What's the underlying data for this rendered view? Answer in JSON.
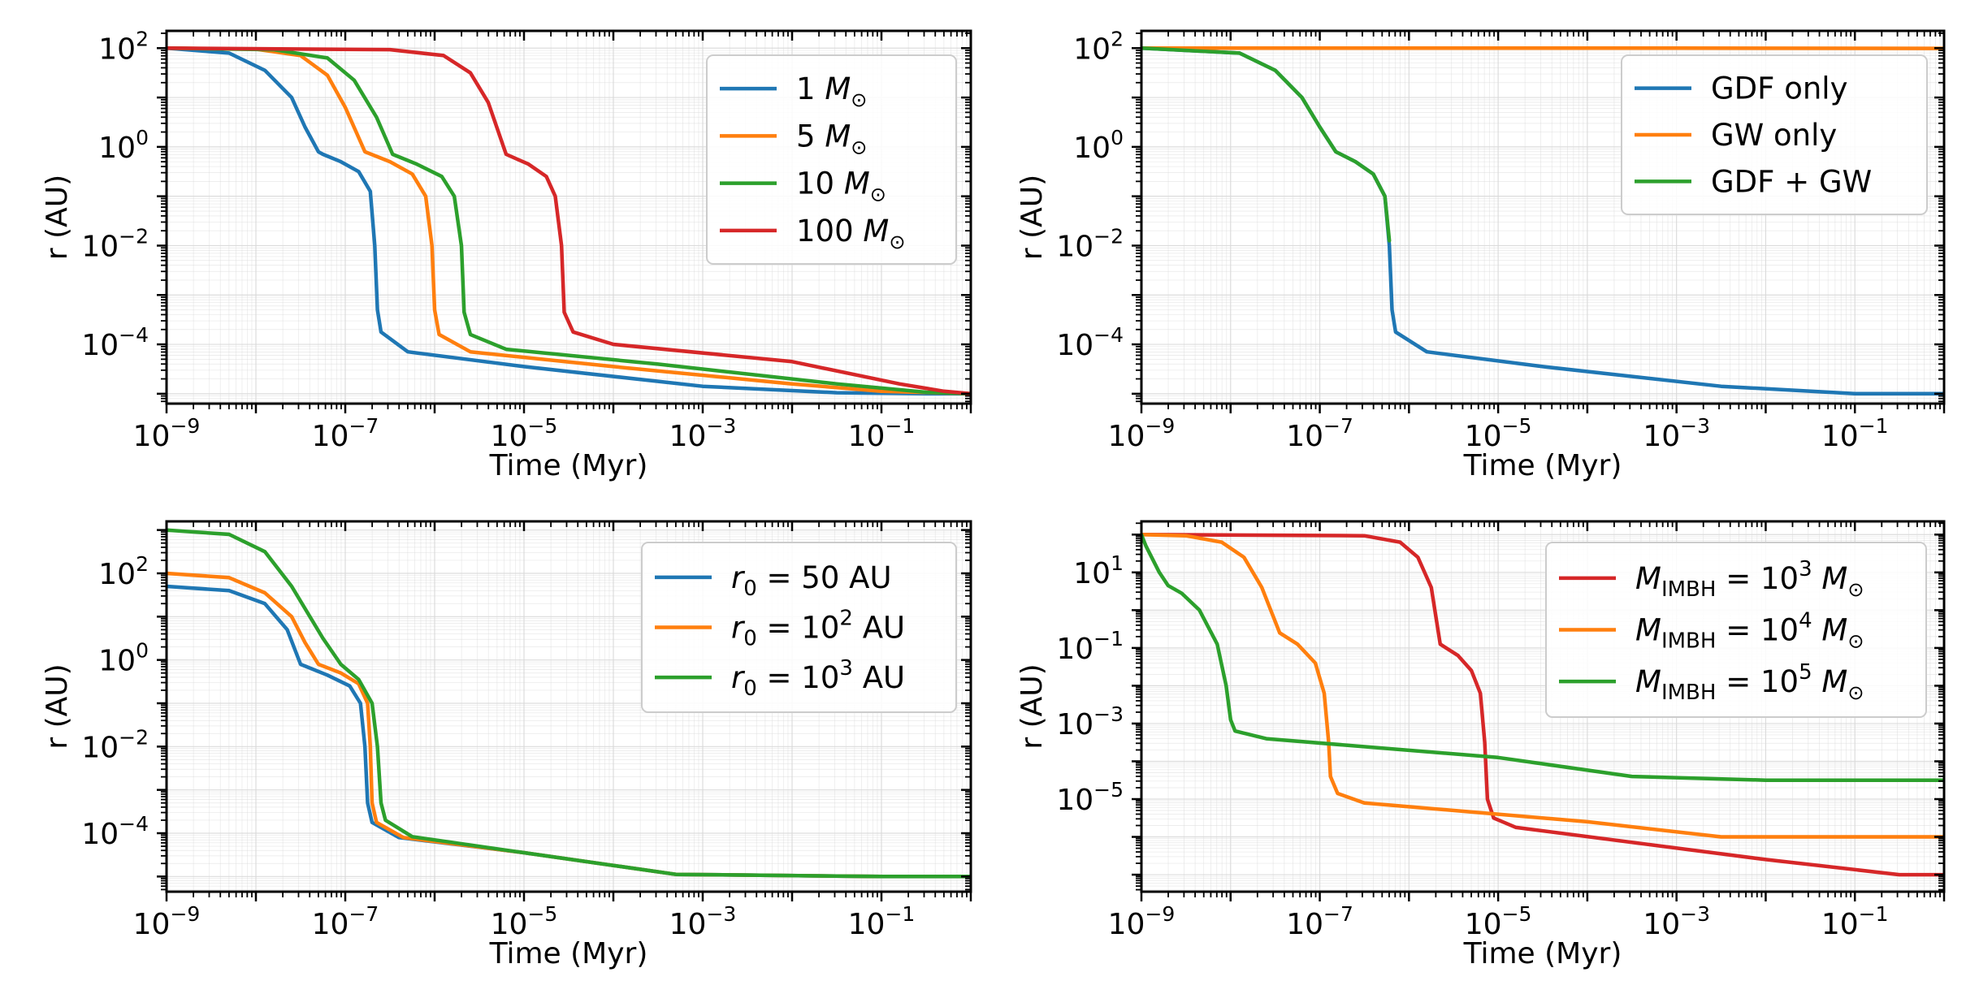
{
  "colors": {
    "blue": "#1f77b4",
    "orange": "#ff7f0e",
    "green": "#2ca02c",
    "red": "#d62728",
    "grid": "#d9d9d9"
  },
  "chart_data": [
    {
      "type": "line",
      "panel": "top-left",
      "xlabel": "Time (Myr)",
      "ylabel": "r (AU)",
      "xscale": "log",
      "yscale": "log",
      "xlim_log10": [
        -9,
        0
      ],
      "ylim_log10": [
        -5.2,
        2.35
      ],
      "xtick_exponents": [
        -9,
        -7,
        -5,
        -3,
        -1
      ],
      "ytick_exponents": [
        2,
        0,
        -2,
        -4
      ],
      "legend_position": "top-right",
      "series": [
        {
          "name": "1",
          "unit_label": "M",
          "color": "blue",
          "points_log10": [
            [
              -9,
              2
            ],
            [
              -8.3,
              1.9
            ],
            [
              -7.9,
              1.55
            ],
            [
              -7.6,
              1.0
            ],
            [
              -7.45,
              0.4
            ],
            [
              -7.3,
              -0.1
            ],
            [
              -7.25,
              -0.15
            ],
            [
              -7.05,
              -0.3
            ],
            [
              -6.85,
              -0.5
            ],
            [
              -6.72,
              -0.9
            ],
            [
              -6.67,
              -2
            ],
            [
              -6.64,
              -3.3
            ],
            [
              -6.6,
              -3.75
            ],
            [
              -6.3,
              -4.15
            ],
            [
              -5,
              -4.45
            ],
            [
              -3,
              -4.85
            ],
            [
              -1.5,
              -4.98
            ],
            [
              -0.5,
              -5.0
            ],
            [
              0,
              -5.0
            ]
          ]
        },
        {
          "name": "5",
          "unit_label": "M",
          "color": "orange",
          "points_log10": [
            [
              -9,
              2
            ],
            [
              -8,
              1.98
            ],
            [
              -7.5,
              1.85
            ],
            [
              -7.2,
              1.45
            ],
            [
              -7.0,
              0.8
            ],
            [
              -6.78,
              -0.1
            ],
            [
              -6.5,
              -0.3
            ],
            [
              -6.25,
              -0.55
            ],
            [
              -6.1,
              -1.0
            ],
            [
              -6.03,
              -2
            ],
            [
              -6.0,
              -3.3
            ],
            [
              -5.95,
              -3.8
            ],
            [
              -5.6,
              -4.15
            ],
            [
              -4,
              -4.45
            ],
            [
              -2,
              -4.8
            ],
            [
              -1,
              -4.95
            ],
            [
              0,
              -5.0
            ]
          ]
        },
        {
          "name": "10",
          "unit_label": "M",
          "color": "green",
          "points_log10": [
            [
              -9,
              2
            ],
            [
              -7.8,
              1.97
            ],
            [
              -7.2,
              1.8
            ],
            [
              -6.9,
              1.35
            ],
            [
              -6.65,
              0.6
            ],
            [
              -6.47,
              -0.15
            ],
            [
              -6.2,
              -0.35
            ],
            [
              -5.92,
              -0.6
            ],
            [
              -5.78,
              -1.0
            ],
            [
              -5.7,
              -2
            ],
            [
              -5.67,
              -3.35
            ],
            [
              -5.6,
              -3.8
            ],
            [
              -5.2,
              -4.1
            ],
            [
              -3.5,
              -4.4
            ],
            [
              -1.5,
              -4.8
            ],
            [
              -0.5,
              -4.97
            ],
            [
              0,
              -5.0
            ]
          ]
        },
        {
          "name": "100",
          "unit_label": "M",
          "color": "red",
          "points_log10": [
            [
              -9,
              2
            ],
            [
              -6.5,
              1.97
            ],
            [
              -5.9,
              1.85
            ],
            [
              -5.6,
              1.5
            ],
            [
              -5.4,
              0.9
            ],
            [
              -5.2,
              -0.15
            ],
            [
              -4.95,
              -0.35
            ],
            [
              -4.75,
              -0.6
            ],
            [
              -4.65,
              -1.0
            ],
            [
              -4.58,
              -2
            ],
            [
              -4.55,
              -3.35
            ],
            [
              -4.45,
              -3.75
            ],
            [
              -4,
              -4.0
            ],
            [
              -2,
              -4.35
            ],
            [
              -0.8,
              -4.8
            ],
            [
              -0.3,
              -4.95
            ],
            [
              0,
              -5.0
            ]
          ]
        }
      ]
    },
    {
      "type": "line",
      "panel": "top-right",
      "xlabel": "Time (Myr)",
      "ylabel": "r (AU)",
      "xscale": "log",
      "yscale": "log",
      "xlim_log10": [
        -9,
        0
      ],
      "ylim_log10": [
        -5.2,
        2.35
      ],
      "xtick_exponents": [
        -9,
        -7,
        -5,
        -3,
        -1
      ],
      "ytick_exponents": [
        2,
        0,
        -2,
        -4
      ],
      "legend_position": "top-right",
      "series": [
        {
          "name": "GDF only",
          "color": "blue",
          "points_log10": [
            [
              -9,
              2
            ],
            [
              -7.9,
              1.9
            ],
            [
              -7.5,
              1.55
            ],
            [
              -7.2,
              1.0
            ],
            [
              -7.0,
              0.4
            ],
            [
              -6.82,
              -0.1
            ],
            [
              -6.6,
              -0.3
            ],
            [
              -6.4,
              -0.55
            ],
            [
              -6.27,
              -1.0
            ],
            [
              -6.22,
              -2
            ],
            [
              -6.19,
              -3.3
            ],
            [
              -6.15,
              -3.75
            ],
            [
              -5.8,
              -4.15
            ],
            [
              -4.5,
              -4.45
            ],
            [
              -2.5,
              -4.85
            ],
            [
              -1,
              -5.0
            ],
            [
              0,
              -5.0
            ]
          ]
        },
        {
          "name": "GW only",
          "color": "orange",
          "points_log10": [
            [
              -9,
              2
            ],
            [
              -3,
              2
            ],
            [
              0,
              1.995
            ]
          ]
        },
        {
          "name": "GDF + GW",
          "color": "green",
          "points_log10": [
            [
              -9,
              2
            ],
            [
              -7.9,
              1.9
            ],
            [
              -7.5,
              1.55
            ],
            [
              -7.2,
              1.0
            ],
            [
              -7.0,
              0.4
            ],
            [
              -6.82,
              -0.1
            ],
            [
              -6.6,
              -0.3
            ],
            [
              -6.4,
              -0.55
            ],
            [
              -6.27,
              -1.0
            ],
            [
              -6.22,
              -1.9
            ]
          ]
        }
      ]
    },
    {
      "type": "line",
      "panel": "bottom-left",
      "xlabel": "Time (Myr)",
      "ylabel": "r (AU)",
      "xscale": "log",
      "yscale": "log",
      "xlim_log10": [
        -9,
        0
      ],
      "ylim_log10": [
        -5.35,
        3.2
      ],
      "xtick_exponents": [
        -9,
        -7,
        -5,
        -3,
        -1
      ],
      "ytick_exponents": [
        2,
        0,
        -2,
        -4
      ],
      "legend_position": "top-right",
      "series": [
        {
          "name": "50",
          "label_prefix": "r",
          "label_sub": "0",
          "label_unit": "AU",
          "color": "blue",
          "points_log10": [
            [
              -9,
              1.7
            ],
            [
              -8.3,
              1.6
            ],
            [
              -7.9,
              1.3
            ],
            [
              -7.65,
              0.7
            ],
            [
              -7.5,
              -0.1
            ],
            [
              -7.2,
              -0.35
            ],
            [
              -6.95,
              -0.6
            ],
            [
              -6.83,
              -1.0
            ],
            [
              -6.78,
              -2
            ],
            [
              -6.75,
              -3.3
            ],
            [
              -6.7,
              -3.75
            ],
            [
              -6.4,
              -4.1
            ],
            [
              -5,
              -4.45
            ],
            [
              -3.3,
              -4.95
            ],
            [
              -1,
              -5.0
            ],
            [
              0,
              -5.0
            ]
          ]
        },
        {
          "name": "10",
          "label_prefix": "r",
          "label_sub": "0",
          "label_sup": "2",
          "label_unit": "AU",
          "color": "orange",
          "points_log10": [
            [
              -9,
              2
            ],
            [
              -8.3,
              1.9
            ],
            [
              -7.9,
              1.55
            ],
            [
              -7.6,
              1.0
            ],
            [
              -7.45,
              0.4
            ],
            [
              -7.3,
              -0.1
            ],
            [
              -7.05,
              -0.3
            ],
            [
              -6.85,
              -0.55
            ],
            [
              -6.75,
              -1.0
            ],
            [
              -6.72,
              -2
            ],
            [
              -6.7,
              -3.3
            ],
            [
              -6.65,
              -3.75
            ],
            [
              -6.35,
              -4.1
            ],
            [
              -5,
              -4.45
            ],
            [
              -3.3,
              -4.95
            ],
            [
              -1,
              -5.0
            ],
            [
              0,
              -5.0
            ]
          ]
        },
        {
          "name": "10",
          "label_prefix": "r",
          "label_sub": "0",
          "label_sup": "3",
          "label_unit": "AU",
          "color": "green",
          "points_log10": [
            [
              -9,
              3
            ],
            [
              -8.3,
              2.9
            ],
            [
              -7.9,
              2.5
            ],
            [
              -7.6,
              1.7
            ],
            [
              -7.25,
              0.5
            ],
            [
              -7.05,
              -0.1
            ],
            [
              -6.85,
              -0.45
            ],
            [
              -6.7,
              -1.0
            ],
            [
              -6.64,
              -2
            ],
            [
              -6.6,
              -3.3
            ],
            [
              -6.55,
              -3.7
            ],
            [
              -6.25,
              -4.08
            ],
            [
              -5,
              -4.45
            ],
            [
              -3.3,
              -4.95
            ],
            [
              -1,
              -5.0
            ],
            [
              0,
              -5.0
            ]
          ]
        }
      ]
    },
    {
      "type": "line",
      "panel": "bottom-right",
      "xlabel": "Time (Myr)",
      "ylabel": "r (AU)",
      "xscale": "log",
      "yscale": "log",
      "xlim_log10": [
        -9,
        0
      ],
      "ylim_log10": [
        -7.45,
        2.35
      ],
      "xtick_exponents": [
        -9,
        -7,
        -5,
        -3,
        -1
      ],
      "ytick_exponents": [
        1,
        -1,
        -3,
        -5
      ],
      "legend_position": "top-right",
      "series": [
        {
          "name": "3",
          "label_prefix": "M",
          "label_sub": "IMBH",
          "label_unit": "M",
          "color": "red",
          "points_log10": [
            [
              -9,
              2
            ],
            [
              -6.5,
              1.97
            ],
            [
              -6.1,
              1.8
            ],
            [
              -5.9,
              1.4
            ],
            [
              -5.75,
              0.6
            ],
            [
              -5.65,
              -0.9
            ],
            [
              -5.45,
              -1.2
            ],
            [
              -5.3,
              -1.6
            ],
            [
              -5.2,
              -2.2
            ],
            [
              -5.15,
              -3.5
            ],
            [
              -5.12,
              -5.0
            ],
            [
              -5.05,
              -5.5
            ],
            [
              -4.8,
              -5.75
            ],
            [
              -2,
              -6.6
            ],
            [
              -0.5,
              -7.0
            ],
            [
              0,
              -7.0
            ]
          ]
        },
        {
          "name": "4",
          "label_prefix": "M",
          "label_sub": "IMBH",
          "label_unit": "M",
          "color": "orange",
          "points_log10": [
            [
              -9,
              2
            ],
            [
              -8.5,
              1.97
            ],
            [
              -8.1,
              1.8
            ],
            [
              -7.85,
              1.4
            ],
            [
              -7.65,
              0.6
            ],
            [
              -7.45,
              -0.6
            ],
            [
              -7.25,
              -0.9
            ],
            [
              -7.05,
              -1.4
            ],
            [
              -6.95,
              -2.2
            ],
            [
              -6.9,
              -3.5
            ],
            [
              -6.88,
              -4.4
            ],
            [
              -6.8,
              -4.85
            ],
            [
              -6.5,
              -5.1
            ],
            [
              -4,
              -5.6
            ],
            [
              -2.5,
              -6.0
            ],
            [
              0,
              -6.0
            ]
          ]
        },
        {
          "name": "5",
          "label_prefix": "M",
          "label_sub": "IMBH",
          "label_unit": "M",
          "color": "green",
          "points_log10": [
            [
              -9,
              2
            ],
            [
              -8.95,
              1.7
            ],
            [
              -8.8,
              1.0
            ],
            [
              -8.7,
              0.65
            ],
            [
              -8.55,
              0.45
            ],
            [
              -8.35,
              0.0
            ],
            [
              -8.15,
              -0.9
            ],
            [
              -8.05,
              -2.0
            ],
            [
              -8.0,
              -2.9
            ],
            [
              -7.95,
              -3.2
            ],
            [
              -7.6,
              -3.4
            ],
            [
              -5,
              -3.9
            ],
            [
              -3.5,
              -4.4
            ],
            [
              -2,
              -4.5
            ],
            [
              0,
              -4.5
            ]
          ]
        }
      ]
    }
  ]
}
